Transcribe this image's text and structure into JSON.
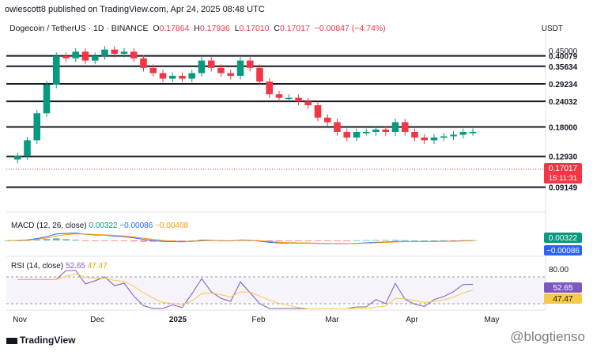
{
  "header": {
    "published": "owiescott8 published on TradingView.com, Apr 24, 2025 08:48 UTC"
  },
  "symbol": {
    "name": "Dogecoin / TetherUS · 1D · BINANCE",
    "o_label": "O",
    "o": "0.17864",
    "h_label": "H",
    "h": "0.17936",
    "l_label": "L",
    "l": "0.17010",
    "c_label": "C",
    "c": "0.17017",
    "change": "−0.00847 (−4.74%)"
  },
  "currency": "USDT",
  "macd": {
    "title": "MACD (12, 26, close)",
    "v1": "0.00322",
    "v2": "−0.00086",
    "v3": "−0.00408",
    "axis_value": "0.00322",
    "axis_value2": "−0.00086"
  },
  "rsi": {
    "title": "RSI (14, close)",
    "v1": "52.65",
    "v2": "47.47",
    "level": "80.00"
  },
  "price_badge": {
    "price": "0.17017",
    "timer": "15:11:31"
  },
  "footer": {
    "logo_text": "TradingView",
    "watermark": "@blogtienso"
  },
  "colors": {
    "up": "#089981",
    "down": "#f23645",
    "macd": "#2962ff",
    "signal": "#ff9800",
    "rsi": "#7e57c2",
    "rsi_ma": "#f7c948"
  },
  "chart_data": {
    "type": "line",
    "title": "Dogecoin / TetherUS · 1D · BINANCE",
    "ylabel": "USDT",
    "y_axis_type": "log",
    "x_tick_labels": [
      "Nov",
      "Dec",
      "2025",
      "Feb",
      "Mar",
      "Apr",
      "May"
    ],
    "y_axis_labels": [
      "0.45000"
    ],
    "levels": [
      "0.40079",
      "0.35634",
      "0.29234",
      "0.24032",
      "0.18000",
      "0.12930",
      "0.09149"
    ],
    "series": [
      {
        "values": [
          0.125,
          0.13,
          0.155,
          0.21,
          0.29,
          0.4,
          0.39,
          0.42,
          0.38,
          0.4,
          0.43,
          0.41,
          0.42,
          0.39,
          0.35,
          0.33,
          0.31,
          0.32,
          0.31,
          0.33,
          0.38,
          0.35,
          0.33,
          0.32,
          0.38,
          0.35,
          0.3,
          0.26,
          0.25,
          0.25,
          0.24,
          0.23,
          0.2,
          0.19,
          0.17,
          0.16,
          0.17,
          0.17,
          0.175,
          0.17,
          0.19,
          0.17,
          0.16,
          0.155,
          0.16,
          0.162,
          0.165,
          0.17,
          0.17017
        ]
      }
    ],
    "macd": {
      "title": "MACD (12, 26, close)",
      "values": [
        "0.00322",
        "−0.00086",
        "−0.00408"
      ]
    },
    "rsi": {
      "title": "RSI (14, close)",
      "values": [
        "52.65",
        "47.47"
      ],
      "levels": [
        "80.00"
      ]
    }
  }
}
